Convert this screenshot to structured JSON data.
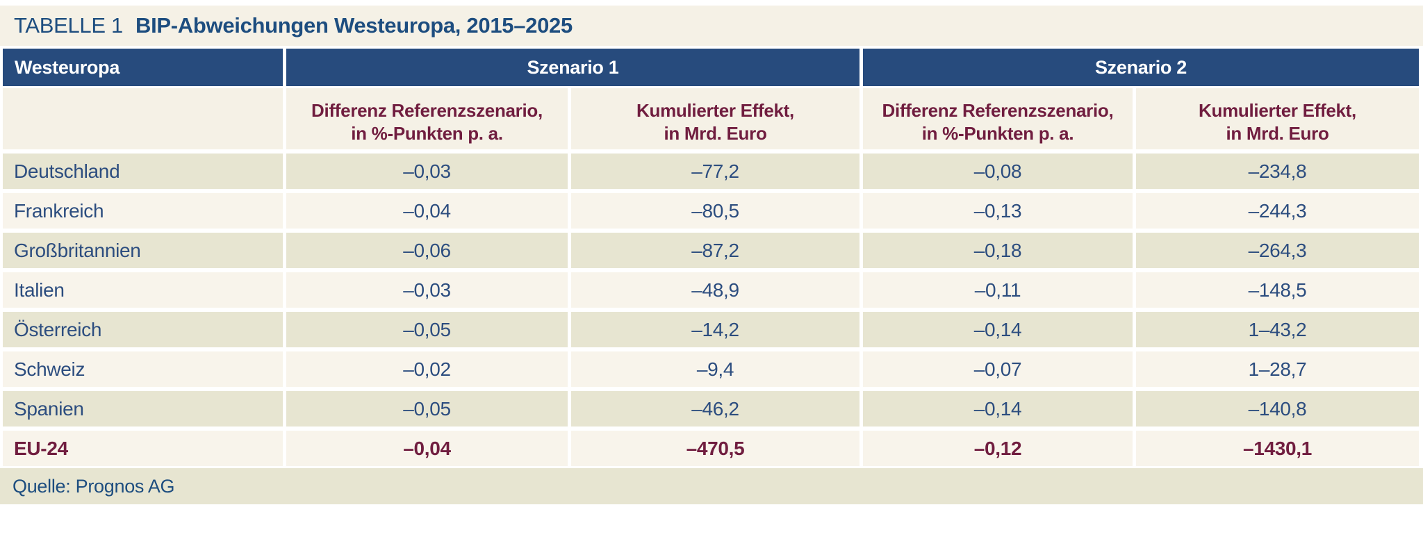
{
  "page": {
    "table_label": "TABELLE 1",
    "title": "BIP-Abweichungen Westeuropa, 2015–2025",
    "source": "Quelle: Prognos AG"
  },
  "colors": {
    "header_blue": "#274b7d",
    "title_blue": "#1d4d7f",
    "cell_text_blue": "#2c4d7f",
    "accent_maroon": "#701d3f",
    "row_olive": "#e7e5d1",
    "row_cream": "#f8f4eb",
    "band_cream": "#f5f1e6"
  },
  "table": {
    "corner_header": "Westeuropa",
    "groups": [
      {
        "label": "Szenario 1"
      },
      {
        "label": "Szenario 2"
      }
    ],
    "subheaders": [
      {
        "line1": "Differenz Referenzszenario,",
        "line2": "in %-Punkten p. a."
      },
      {
        "line1": "Kumulierter Effekt,",
        "line2": "in Mrd. Euro"
      },
      {
        "line1": "Differenz Referenzszenario,",
        "line2": "in %-Punkten p. a."
      },
      {
        "line1": "Kumulierter Effekt,",
        "line2": "in Mrd. Euro"
      }
    ],
    "rows": [
      {
        "country": "Deutschland",
        "s1_diff": "–0,03",
        "s1_kum": "–77,2",
        "s2_diff": "–0,08",
        "s2_kum": "–234,8"
      },
      {
        "country": "Frankreich",
        "s1_diff": "–0,04",
        "s1_kum": "–80,5",
        "s2_diff": "–0,13",
        "s2_kum": "–244,3"
      },
      {
        "country": "Großbritannien",
        "s1_diff": "–0,06",
        "s1_kum": "–87,2",
        "s2_diff": "–0,18",
        "s2_kum": "–264,3"
      },
      {
        "country": "Italien",
        "s1_diff": "–0,03",
        "s1_kum": "–48,9",
        "s2_diff": "–0,11",
        "s2_kum": "–148,5"
      },
      {
        "country": "Österreich",
        "s1_diff": "–0,05",
        "s1_kum": "–14,2",
        "s2_diff": "–0,14",
        "s2_kum": "1–43,2"
      },
      {
        "country": "Schweiz",
        "s1_diff": "–0,02",
        "s1_kum": "–9,4",
        "s2_diff": "–0,07",
        "s2_kum": "1–28,7"
      },
      {
        "country": "Spanien",
        "s1_diff": "–0,05",
        "s1_kum": "–46,2",
        "s2_diff": "–0,14",
        "s2_kum": "–140,8"
      },
      {
        "country": "EU-24",
        "s1_diff": "–0,04",
        "s1_kum": "–470,5",
        "s2_diff": "–0,12",
        "s2_kum": "–1430,1"
      }
    ]
  }
}
